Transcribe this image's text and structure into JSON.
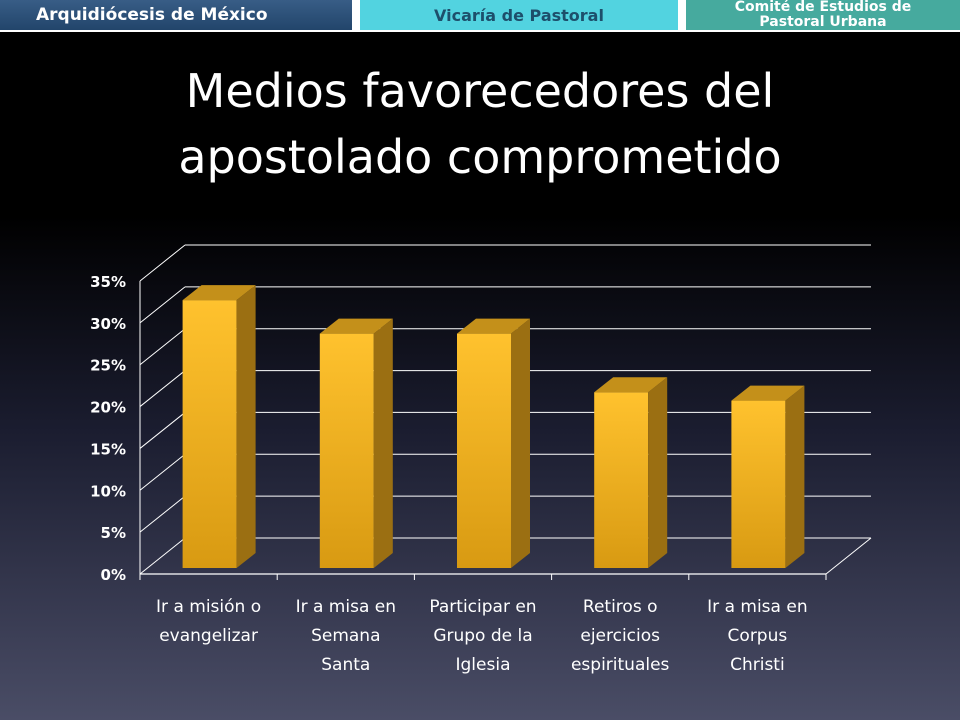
{
  "header": {
    "left": "Arquidiócesis de México",
    "center": "Vicaría de Pastoral",
    "right_line1": "Comité de Estudios de",
    "right_line2": "Pastoral Urbana"
  },
  "slide": {
    "title_line1": "Medios favorecedores del",
    "title_line2": "apostolado comprometido"
  },
  "colors": {
    "bar_front_top": "#ffc22e",
    "bar_front_bottom": "#d89a12",
    "bar_side": "#9b6f12",
    "bar_top": "#c4901a",
    "grid": "#ffffff"
  },
  "chart_data": {
    "type": "bar",
    "title": "",
    "xlabel": "",
    "ylabel": "",
    "ylim": [
      0,
      35
    ],
    "yticks": [
      0,
      5,
      10,
      15,
      20,
      25,
      30,
      35
    ],
    "ytick_labels": [
      "0%",
      "5%",
      "10%",
      "15%",
      "20%",
      "25%",
      "30%",
      "35%"
    ],
    "grid": true,
    "legend": "none",
    "categories": [
      [
        "Ir a misión o",
        "evangelizar"
      ],
      [
        "Ir a misa en",
        "Semana",
        "Santa"
      ],
      [
        "Participar en",
        "Grupo de la",
        "Iglesia"
      ],
      [
        "Retiros o",
        "ejercicios",
        "espirituales"
      ],
      [
        "Ir a misa en",
        "Corpus",
        "Christi"
      ]
    ],
    "values": [
      32,
      28,
      28,
      21,
      20
    ]
  }
}
